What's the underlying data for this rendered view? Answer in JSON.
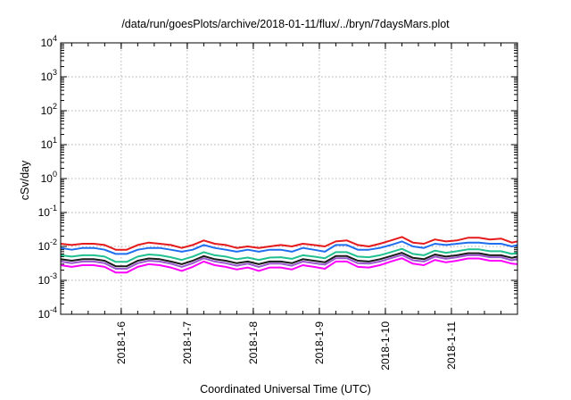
{
  "chart_data": {
    "type": "line",
    "title": "/data/run/goesPlots/archive/2018-01-11/flux/../bryn/7daysMars.plot",
    "xlabel": "Coordinated Universal Time (UTC)",
    "ylabel": "cSv/day",
    "y_scale": "log",
    "ylim": [
      0.0001,
      10000
    ],
    "xlim": [
      "2018-01-05 02:00",
      "2018-01-12 00:00"
    ],
    "grid": true,
    "legend": "none",
    "x_ticks": [
      "2018-1-6",
      "2018-1-7",
      "2018-1-8",
      "2018-1-9",
      "2018-1-10",
      "2018-1-11"
    ],
    "y_ticks": [
      {
        "base": "10",
        "exp": "-4",
        "value": 0.0001
      },
      {
        "base": "10",
        "exp": "-3",
        "value": 0.001
      },
      {
        "base": "10",
        "exp": "-2",
        "value": 0.01
      },
      {
        "base": "10",
        "exp": "-1",
        "value": 0.1
      },
      {
        "base": "10",
        "exp": "0",
        "value": 1
      },
      {
        "base": "10",
        "exp": "1",
        "value": 10
      },
      {
        "base": "10",
        "exp": "2",
        "value": 100
      },
      {
        "base": "10",
        "exp": "3",
        "value": 1000
      },
      {
        "base": "10",
        "exp": "4",
        "value": 10000
      }
    ],
    "x": [
      "2018-01-05 02:00",
      "2018-01-05 06:00",
      "2018-01-05 10:00",
      "2018-01-05 14:00",
      "2018-01-05 18:00",
      "2018-01-05 22:00",
      "2018-01-06 02:00",
      "2018-01-06 06:00",
      "2018-01-06 10:00",
      "2018-01-06 14:00",
      "2018-01-06 18:00",
      "2018-01-06 22:00",
      "2018-01-07 02:00",
      "2018-01-07 06:00",
      "2018-01-07 10:00",
      "2018-01-07 14:00",
      "2018-01-07 18:00",
      "2018-01-07 22:00",
      "2018-01-08 02:00",
      "2018-01-08 06:00",
      "2018-01-08 10:00",
      "2018-01-08 14:00",
      "2018-01-08 18:00",
      "2018-01-08 22:00",
      "2018-01-09 02:00",
      "2018-01-09 06:00",
      "2018-01-09 10:00",
      "2018-01-09 14:00",
      "2018-01-09 18:00",
      "2018-01-09 22:00",
      "2018-01-10 02:00",
      "2018-01-10 06:00",
      "2018-01-10 10:00",
      "2018-01-10 14:00",
      "2018-01-10 18:00",
      "2018-01-10 22:00",
      "2018-01-11 02:00",
      "2018-01-11 06:00",
      "2018-01-11 10:00",
      "2018-01-11 14:00",
      "2018-01-11 18:00",
      "2018-01-11 22:00",
      "2018-01-12 00:00"
    ],
    "series": [
      {
        "color": "#e41a1c",
        "values": [
          0.012,
          0.011,
          0.012,
          0.012,
          0.011,
          0.008,
          0.008,
          0.011,
          0.013,
          0.012,
          0.011,
          0.009,
          0.011,
          0.015,
          0.012,
          0.011,
          0.009,
          0.01,
          0.009,
          0.01,
          0.011,
          0.01,
          0.012,
          0.011,
          0.01,
          0.014,
          0.015,
          0.011,
          0.01,
          0.012,
          0.015,
          0.019,
          0.013,
          0.012,
          0.016,
          0.014,
          0.015,
          0.018,
          0.018,
          0.016,
          0.017,
          0.013,
          0.014
        ]
      },
      {
        "color": "#1f6ef0",
        "values": [
          0.009,
          0.008,
          0.009,
          0.009,
          0.008,
          0.006,
          0.006,
          0.008,
          0.009,
          0.009,
          0.008,
          0.007,
          0.008,
          0.011,
          0.009,
          0.008,
          0.007,
          0.008,
          0.007,
          0.008,
          0.008,
          0.007,
          0.009,
          0.008,
          0.007,
          0.011,
          0.011,
          0.008,
          0.008,
          0.009,
          0.011,
          0.014,
          0.01,
          0.009,
          0.012,
          0.011,
          0.012,
          0.013,
          0.013,
          0.012,
          0.012,
          0.01,
          0.011
        ]
      },
      {
        "color": "#20c090",
        "values": [
          0.0055,
          0.005,
          0.0055,
          0.0055,
          0.005,
          0.0035,
          0.0035,
          0.005,
          0.0058,
          0.0055,
          0.0048,
          0.004,
          0.005,
          0.0068,
          0.0055,
          0.005,
          0.0042,
          0.0047,
          0.004,
          0.0047,
          0.0048,
          0.0043,
          0.0055,
          0.005,
          0.0045,
          0.0068,
          0.0068,
          0.005,
          0.0048,
          0.0055,
          0.0068,
          0.0085,
          0.006,
          0.0055,
          0.0075,
          0.0065,
          0.0072,
          0.0082,
          0.0082,
          0.0072,
          0.0072,
          0.006,
          0.0065
        ]
      },
      {
        "color": "#1a1a1a",
        "values": [
          0.0042,
          0.0038,
          0.0042,
          0.0042,
          0.0038,
          0.0026,
          0.0026,
          0.0038,
          0.0044,
          0.0042,
          0.0036,
          0.003,
          0.0038,
          0.0052,
          0.0042,
          0.0038,
          0.0032,
          0.0036,
          0.003,
          0.0036,
          0.0036,
          0.0032,
          0.0042,
          0.0038,
          0.0034,
          0.0052,
          0.0052,
          0.0038,
          0.0036,
          0.0042,
          0.0052,
          0.0065,
          0.0046,
          0.0042,
          0.0058,
          0.005,
          0.0055,
          0.0063,
          0.0063,
          0.0055,
          0.0055,
          0.0046,
          0.005
        ]
      },
      {
        "color": "#9b59d0",
        "values": [
          0.0036,
          0.0032,
          0.0036,
          0.0036,
          0.0032,
          0.0022,
          0.0022,
          0.0032,
          0.0038,
          0.0036,
          0.0031,
          0.0025,
          0.0032,
          0.0045,
          0.0036,
          0.0032,
          0.0027,
          0.0031,
          0.0025,
          0.0031,
          0.0031,
          0.0027,
          0.0036,
          0.0032,
          0.0029,
          0.0045,
          0.0045,
          0.0032,
          0.0031,
          0.0036,
          0.0045,
          0.0056,
          0.0039,
          0.0036,
          0.005,
          0.0043,
          0.0048,
          0.0055,
          0.0055,
          0.0048,
          0.0048,
          0.0039,
          0.0043
        ]
      },
      {
        "color": "#ff00ff",
        "values": [
          0.0028,
          0.0025,
          0.0028,
          0.0028,
          0.0025,
          0.0017,
          0.0017,
          0.0025,
          0.003,
          0.0028,
          0.0024,
          0.0019,
          0.0025,
          0.0036,
          0.0028,
          0.0025,
          0.0021,
          0.0024,
          0.0019,
          0.0024,
          0.0024,
          0.0021,
          0.0028,
          0.0025,
          0.0022,
          0.0036,
          0.0036,
          0.0025,
          0.0024,
          0.0028,
          0.0036,
          0.0045,
          0.0031,
          0.0028,
          0.004,
          0.0034,
          0.0038,
          0.0044,
          0.0044,
          0.0038,
          0.0038,
          0.0031,
          0.003
        ]
      }
    ]
  }
}
